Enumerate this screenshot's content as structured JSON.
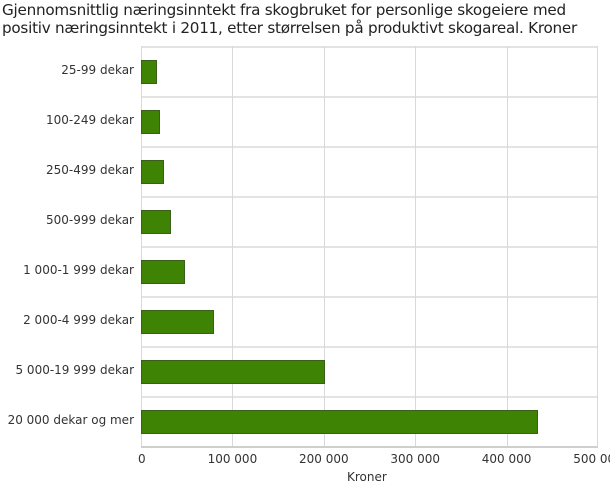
{
  "title_line1": "Gjennomsnittlig næringsinntekt fra skogbruket for personlige skogeiere med",
  "title_line2": "positiv næringsinntekt i 2011, etter størrelsen på produktivt skogareal. Kroner",
  "colors": {
    "bar": "#3f8304",
    "bar_border": "#3a5f1a",
    "grid": "#e0e0e0"
  },
  "chart_data": {
    "type": "bar",
    "orientation": "horizontal",
    "title": "Gjennomsnittlig næringsinntekt fra skogbruket for personlige skogeiere med positiv næringsinntekt i 2011, etter størrelsen på produktivt skogareal. Kroner",
    "categories": [
      "25-99 dekar",
      "100-249 dekar",
      "250-499 dekar",
      "500-999 dekar",
      "1 000-1 999 dekar",
      "2 000-4 999 dekar",
      "5 000-19 999 dekar",
      "20 000 dekar og mer"
    ],
    "values": [
      17500,
      21000,
      25500,
      33000,
      48500,
      80000,
      201500,
      434000
    ],
    "xlabel": "Kroner",
    "ylabel": "",
    "xlim": [
      0,
      500000
    ],
    "xticks": [
      "0",
      "100 000",
      "200 000",
      "300 000",
      "400 000",
      "500 000"
    ],
    "grid": true,
    "legend": null
  }
}
